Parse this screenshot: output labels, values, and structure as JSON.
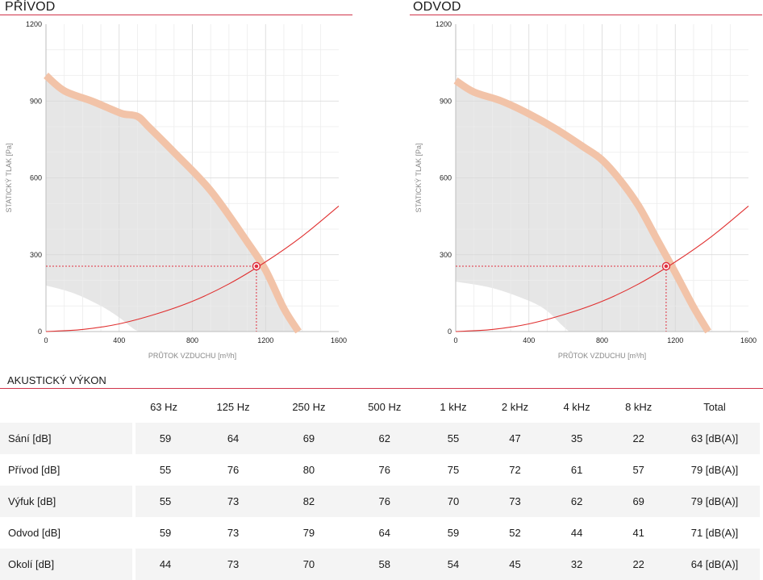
{
  "chart_data": [
    {
      "type": "line",
      "title": "PŘÍVOD",
      "xlabel": "PRŮTOK VZDUCHU [m³/h]",
      "ylabel": "STATICKÝ TLAK [Pa]",
      "xlim": [
        0,
        1600
      ],
      "ylim": [
        0,
        1200
      ],
      "x_ticks": [
        "0",
        "400",
        "800",
        "1200",
        "1600"
      ],
      "y_ticks": [
        "0",
        "300",
        "600",
        "900",
        "1200"
      ],
      "grid": true,
      "series": [
        {
          "role": "fan-curve",
          "color": "#f2c3a8",
          "x": [
            0,
            100,
            250,
            350,
            420,
            500,
            560,
            700,
            900,
            1100,
            1200,
            1300,
            1380
          ],
          "y": [
            1000,
            940,
            900,
            870,
            850,
            840,
            800,
            700,
            550,
            350,
            240,
            90,
            0
          ]
        },
        {
          "role": "envelope-lower",
          "x": [
            0,
            150,
            300,
            400,
            480,
            520
          ],
          "y": [
            180,
            150,
            100,
            55,
            10,
            0
          ]
        },
        {
          "role": "system-curve",
          "color": "#e03030",
          "x": [
            0,
            200,
            400,
            600,
            800,
            1000,
            1200,
            1400,
            1600
          ],
          "y": [
            0,
            8,
            30,
            68,
            118,
            186,
            272,
            372,
            490
          ]
        }
      ],
      "operating_point": {
        "x": 1150,
        "y": 255
      },
      "accent": "#e03040"
    },
    {
      "type": "line",
      "title": "ODVOD",
      "xlabel": "PRŮTOK VZDUCHU [m³/h]",
      "ylabel": "STATICKÝ TLAK [Pa]",
      "xlim": [
        0,
        1600
      ],
      "ylim": [
        0,
        1200
      ],
      "x_ticks": [
        "0",
        "400",
        "800",
        "1200",
        "1600"
      ],
      "y_ticks": [
        "0",
        "300",
        "600",
        "900",
        "1200"
      ],
      "grid": true,
      "series": [
        {
          "role": "fan-curve",
          "color": "#f2c3a8",
          "x": [
            0,
            100,
            250,
            400,
            550,
            700,
            800,
            900,
            1000,
            1100,
            1200,
            1300,
            1380
          ],
          "y": [
            980,
            935,
            900,
            850,
            790,
            720,
            670,
            590,
            490,
            360,
            230,
            95,
            0
          ]
        },
        {
          "role": "envelope-lower",
          "x": [
            0,
            200,
            400,
            500,
            580,
            620
          ],
          "y": [
            195,
            170,
            120,
            80,
            25,
            0
          ]
        },
        {
          "role": "system-curve",
          "color": "#e03030",
          "x": [
            0,
            200,
            400,
            600,
            800,
            1000,
            1200,
            1400,
            1600
          ],
          "y": [
            0,
            8,
            30,
            68,
            118,
            186,
            272,
            372,
            490
          ]
        }
      ],
      "operating_point": {
        "x": 1150,
        "y": 255
      },
      "accent": "#e03040"
    }
  ],
  "acoustic": {
    "title": "AKUSTICKÝ VÝKON",
    "headers": [
      "63 Hz",
      "125 Hz",
      "250 Hz",
      "500 Hz",
      "1 kHz",
      "2 kHz",
      "4 kHz",
      "8 kHz",
      "Total"
    ],
    "rows": [
      {
        "label": "Sání [dB]",
        "values": [
          "59",
          "64",
          "69",
          "62",
          "55",
          "47",
          "35",
          "22",
          "63 [dB(A)]"
        ]
      },
      {
        "label": "Přívod [dB]",
        "values": [
          "55",
          "76",
          "80",
          "76",
          "75",
          "72",
          "61",
          "57",
          "79 [dB(A)]"
        ]
      },
      {
        "label": "Výfuk [dB]",
        "values": [
          "55",
          "73",
          "82",
          "76",
          "70",
          "73",
          "62",
          "69",
          "79 [dB(A)]"
        ]
      },
      {
        "label": "Odvod [dB]",
        "values": [
          "59",
          "73",
          "79",
          "64",
          "59",
          "52",
          "44",
          "41",
          "71 [dB(A)]"
        ]
      },
      {
        "label": "Okolí [dB]",
        "values": [
          "44",
          "73",
          "70",
          "58",
          "54",
          "45",
          "32",
          "22",
          "64 [dB(A)]"
        ]
      }
    ]
  }
}
